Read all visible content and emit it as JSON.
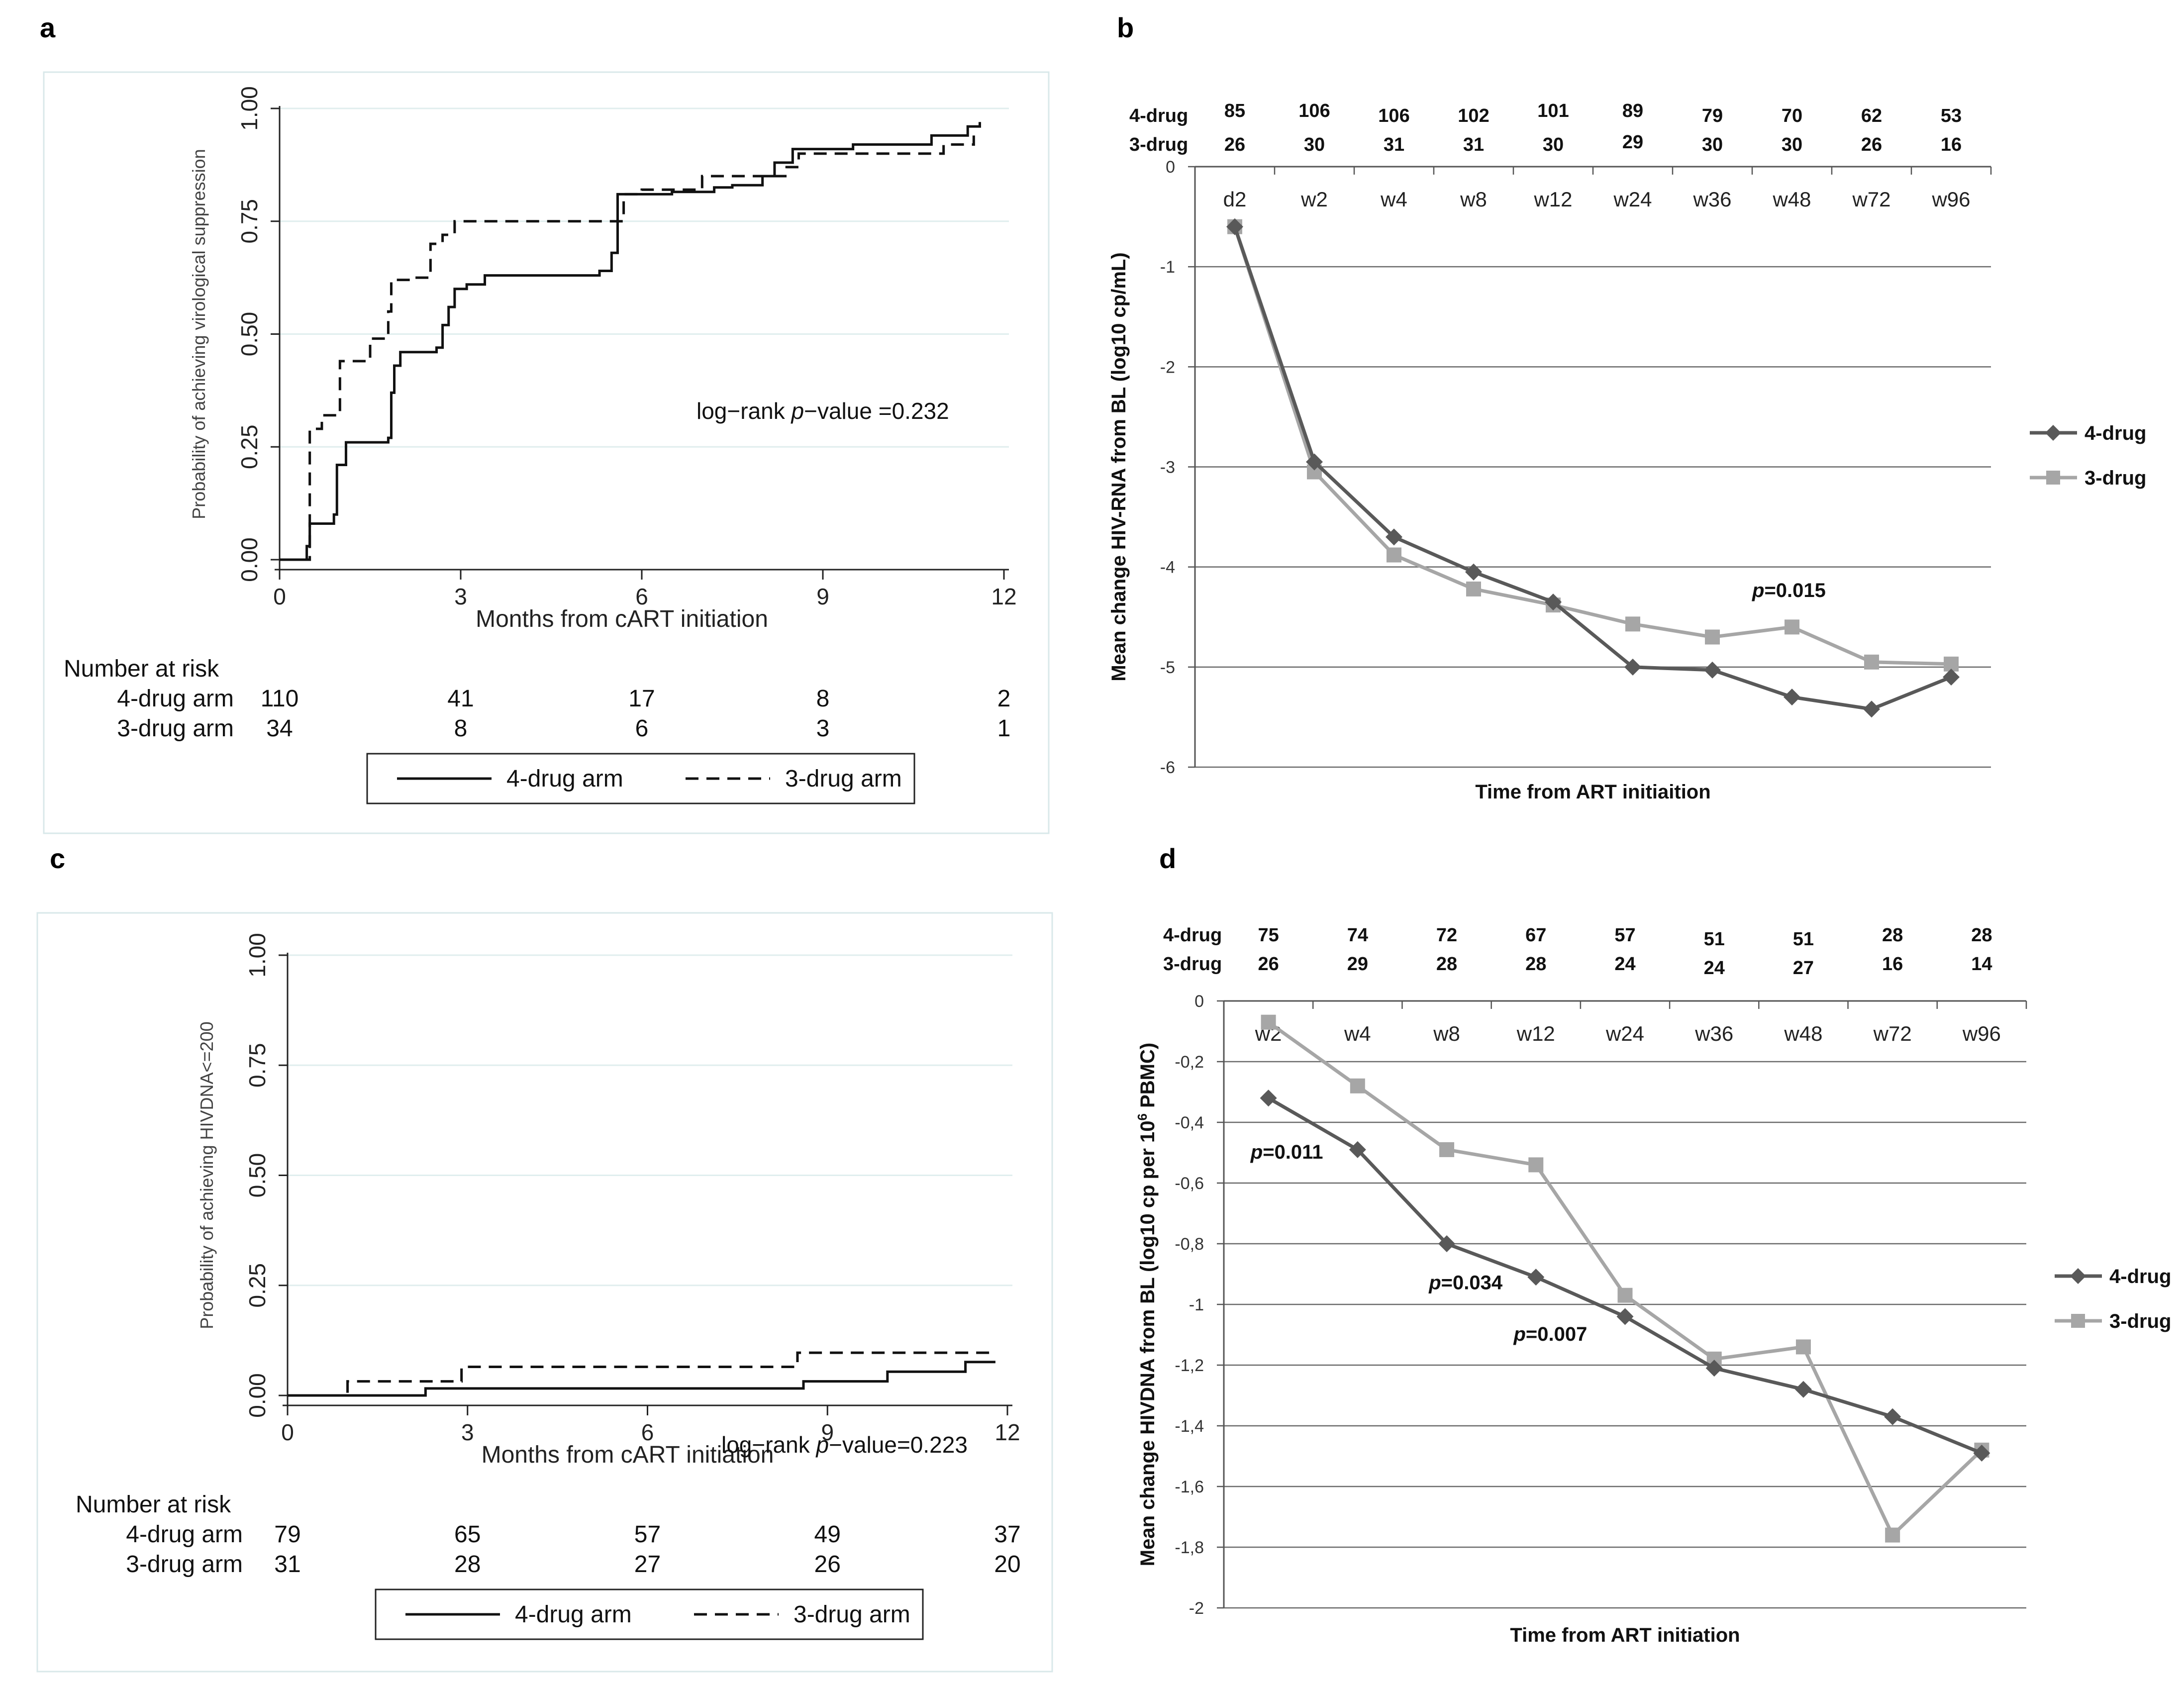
{
  "chart_data": [
    {
      "type": "line",
      "panel": "a",
      "style": "kaplan-meier",
      "xlabel": "Months from cART initiation",
      "ylabel": "Probability of achieving virological suppression",
      "xlim": [
        0,
        12
      ],
      "ylim": [
        0,
        1
      ],
      "xticks": [
        "0",
        "3",
        "6",
        "9",
        "12"
      ],
      "yticks": [
        "0.00",
        "0.25",
        "0.50",
        "0.75",
        "1.00"
      ],
      "annotation": {
        "prefix": "log−rank ",
        "p": "p",
        "suffix": "−value =0.232"
      },
      "series": [
        {
          "name": "4-drug arm",
          "dash": "solid",
          "x": [
            0,
            0.4,
            0.45,
            0.5,
            0.9,
            0.95,
            1.1,
            1.8,
            1.85,
            1.9,
            2.0,
            2.6,
            2.7,
            2.8,
            2.9,
            3.1,
            3.4,
            5.3,
            5.5,
            5.6,
            6.5,
            7.2,
            7.5,
            8.0,
            8.2,
            8.5,
            9.5,
            10.8,
            11.4,
            11.6
          ],
          "y": [
            0,
            0,
            0.03,
            0.08,
            0.1,
            0.21,
            0.26,
            0.27,
            0.37,
            0.43,
            0.46,
            0.47,
            0.52,
            0.56,
            0.6,
            0.61,
            0.63,
            0.64,
            0.68,
            0.81,
            0.815,
            0.825,
            0.83,
            0.85,
            0.88,
            0.91,
            0.92,
            0.94,
            0.96,
            0.97
          ]
        },
        {
          "name": "3-drug arm",
          "dash": "dashed",
          "x": [
            0,
            0.3,
            0.5,
            0.7,
            1.0,
            1.5,
            1.8,
            1.85,
            2.2,
            2.5,
            2.7,
            2.9,
            4.0,
            5.5,
            5.7,
            6.0,
            7.0,
            8.4,
            8.6,
            11.0,
            11.5
          ],
          "y": [
            0,
            0,
            0.29,
            0.32,
            0.44,
            0.49,
            0.55,
            0.62,
            0.625,
            0.7,
            0.72,
            0.75,
            0.75,
            0.75,
            0.81,
            0.82,
            0.85,
            0.87,
            0.9,
            0.92,
            0.94
          ]
        }
      ],
      "risk_table": {
        "title": "Number at risk",
        "rows": [
          {
            "label": "4-drug arm",
            "values": [
              "110",
              "41",
              "17",
              "8",
              "2"
            ]
          },
          {
            "label": "3-drug arm",
            "values": [
              "34",
              "8",
              "6",
              "3",
              "1"
            ]
          }
        ]
      },
      "legend": [
        "4-drug arm",
        "3-drug arm"
      ]
    },
    {
      "type": "line",
      "panel": "b",
      "title": "",
      "xlabel": "Time from ART initiaition",
      "ylabel": "Mean change HIV-RNA from BL (log10 cp/mL)",
      "ylim": [
        -6,
        0
      ],
      "yticks": [
        "0",
        "-1",
        "-2",
        "-3",
        "-4",
        "-5",
        "-6"
      ],
      "categories": [
        "d2",
        "w2",
        "w4",
        "w8",
        "w12",
        "w24",
        "w36",
        "w48",
        "w72",
        "w96"
      ],
      "counts": [
        {
          "label": "4-drug",
          "values": [
            "85",
            "106",
            "106",
            "102",
            "101",
            "89",
            "79",
            "70",
            "62",
            "53"
          ]
        },
        {
          "label": "3-drug",
          "values": [
            "26",
            "30",
            "31",
            "31",
            "30",
            "29",
            "30",
            "30",
            "26",
            "16"
          ]
        }
      ],
      "series": [
        {
          "name": "4-drug",
          "color": "#595959",
          "marker": "diamond",
          "values": [
            -0.6,
            -2.95,
            -3.7,
            -4.05,
            -4.35,
            -5.0,
            -5.03,
            -5.3,
            -5.42,
            -5.1
          ]
        },
        {
          "name": "3-drug",
          "color": "#a6a6a6",
          "marker": "square",
          "values": [
            -0.6,
            -3.05,
            -3.88,
            -4.22,
            -4.38,
            -4.57,
            -4.7,
            -4.6,
            -4.95,
            -4.97
          ]
        }
      ],
      "annotations": [
        {
          "p": "p",
          "text": "=0.015",
          "x": 7,
          "y": -4.3
        }
      ],
      "legend": [
        "4-drug",
        "3-drug"
      ]
    },
    {
      "type": "line",
      "panel": "c",
      "style": "kaplan-meier",
      "xlabel": "Months from cART initiation",
      "ylabel": "Probability of achieving HIVDNA<=200",
      "xlim": [
        0,
        12
      ],
      "ylim": [
        0,
        1
      ],
      "xticks": [
        "0",
        "3",
        "6",
        "9",
        "12"
      ],
      "yticks": [
        "0.00",
        "0.25",
        "0.50",
        "0.75",
        "1.00"
      ],
      "annotation": {
        "prefix": "log−rank ",
        "p": "p",
        "suffix": "−value=0.223"
      },
      "series": [
        {
          "name": "4-drug arm",
          "dash": "solid",
          "x": [
            0,
            2.3,
            2.3,
            8.6,
            8.6,
            10.0,
            10.0,
            11.3,
            11.3,
            11.8
          ],
          "y": [
            0,
            0,
            0.016,
            0.016,
            0.032,
            0.032,
            0.054,
            0.054,
            0.076,
            0.076
          ]
        },
        {
          "name": "3-drug arm",
          "dash": "dashed",
          "x": [
            0,
            1.0,
            1.0,
            2.9,
            2.9,
            8.5,
            8.5,
            11.8
          ],
          "y": [
            0,
            0,
            0.032,
            0.032,
            0.065,
            0.065,
            0.097,
            0.097
          ]
        }
      ],
      "risk_table": {
        "title": "Number at risk",
        "rows": [
          {
            "label": "4-drug arm",
            "values": [
              "79",
              "65",
              "57",
              "49",
              "37"
            ]
          },
          {
            "label": "3-drug arm",
            "values": [
              "31",
              "28",
              "27",
              "26",
              "20"
            ]
          }
        ]
      },
      "legend": [
        "4-drug arm",
        "3-drug arm"
      ]
    },
    {
      "type": "line",
      "panel": "d",
      "xlabel": "Time from ART initiation",
      "ylabel_main": "Mean change HIVDNA from BL (log10  cp per 10",
      "ylabel_sup": "6",
      "ylabel_tail": " PBMC)",
      "ylim": [
        -2,
        0
      ],
      "yticks": [
        "0",
        "-0,2",
        "-0,4",
        "-0,6",
        "-0,8",
        "-1",
        "-1,2",
        "-1,4",
        "-1,6",
        "-1,8",
        "-2"
      ],
      "categories": [
        "w2",
        "w4",
        "w8",
        "w12",
        "w24",
        "w36",
        "w48",
        "w72",
        "w96"
      ],
      "counts": [
        {
          "label": "4-drug",
          "values": [
            "75",
            "74",
            "72",
            "67",
            "57",
            "51",
            "51",
            "28",
            "28"
          ]
        },
        {
          "label": "3-drug",
          "values": [
            "26",
            "29",
            "28",
            "28",
            "24",
            "24",
            "27",
            "16",
            "14"
          ]
        }
      ],
      "series": [
        {
          "name": "4-drug",
          "color": "#595959",
          "marker": "diamond",
          "values": [
            -0.32,
            -0.49,
            -0.8,
            -0.91,
            -1.04,
            -1.21,
            -1.28,
            -1.37,
            -1.49
          ]
        },
        {
          "name": "3-drug",
          "color": "#a6a6a6",
          "marker": "square",
          "values": [
            -0.07,
            -0.28,
            -0.49,
            -0.54,
            -0.97,
            -1.18,
            -1.14,
            -1.76,
            -1.48
          ]
        }
      ],
      "annotations": [
        {
          "p": "p",
          "text": "=0.011",
          "x": 0.3,
          "y": -0.52
        },
        {
          "p": "p",
          "text": "=0.034",
          "x": 2.3,
          "y": -0.95
        },
        {
          "p": "p",
          "text": "=0.007",
          "x": 3.25,
          "y": -1.12
        }
      ],
      "legend": [
        "4-drug",
        "3-drug"
      ]
    }
  ]
}
